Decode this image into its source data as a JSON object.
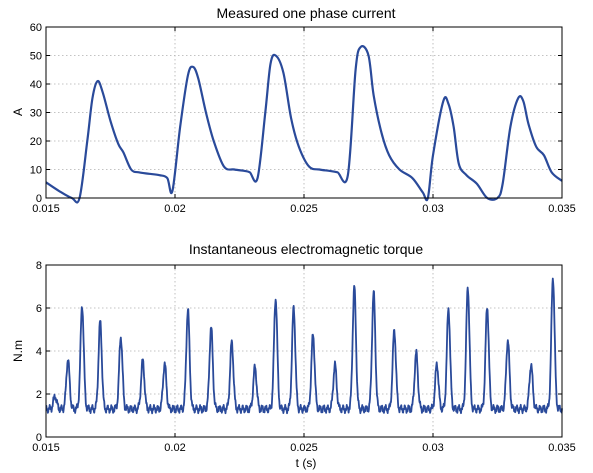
{
  "chart_data": [
    {
      "type": "line",
      "title": "Measured one phase current",
      "xlabel": "",
      "ylabel": "A",
      "xlim": [
        0.015,
        0.035
      ],
      "ylim": [
        0,
        60
      ],
      "xticks": [
        0.015,
        0.02,
        0.025,
        0.03,
        0.035
      ],
      "xtick_labels": [
        "0.015",
        "0.02",
        "0.025",
        "0.03",
        "0.035"
      ],
      "yticks": [
        0,
        10,
        20,
        30,
        40,
        50,
        60
      ],
      "ytick_labels": [
        "0",
        "10",
        "20",
        "30",
        "40",
        "50",
        "60"
      ],
      "grid": true,
      "line_color": "#2a4a9a",
      "series": [
        {
          "x": [
            0.015,
            0.0155,
            0.016,
            0.0163,
            0.0166,
            0.0168,
            0.017,
            0.0172,
            0.0175,
            0.0178,
            0.018,
            0.0183,
            0.0186,
            0.019,
            0.0194,
            0.0197,
            0.0199,
            0.0202,
            0.0205,
            0.0207,
            0.0209,
            0.0212,
            0.0215,
            0.0219,
            0.0223,
            0.0227,
            0.0229,
            0.0232,
            0.0235,
            0.0237,
            0.0239,
            0.0242,
            0.0245,
            0.0248,
            0.0252,
            0.0256,
            0.026,
            0.0263,
            0.0267,
            0.027,
            0.0272,
            0.0275,
            0.0277,
            0.028,
            0.0283,
            0.0287,
            0.0292,
            0.0296,
            0.0298,
            0.03,
            0.0304,
            0.0306,
            0.0308,
            0.031,
            0.0313,
            0.0317,
            0.0321,
            0.0325,
            0.0327,
            0.033,
            0.0333,
            0.0335,
            0.0337,
            0.034,
            0.0343,
            0.0346,
            0.035
          ],
          "y": [
            5.5,
            2.5,
            0,
            0,
            20,
            35,
            41,
            37,
            27,
            19,
            16,
            10,
            9,
            8.5,
            8,
            7,
            2.5,
            25,
            43,
            46,
            42,
            30,
            20,
            11,
            10,
            9.5,
            9,
            7,
            30,
            47,
            50,
            44,
            28,
            18,
            11,
            10,
            9.5,
            9,
            8,
            45,
            53,
            50,
            36,
            23,
            15,
            10,
            7,
            2,
            0,
            15,
            34,
            33,
            25,
            12,
            8,
            5,
            0,
            0,
            5,
            25,
            35,
            34,
            26,
            18,
            15,
            9,
            6
          ]
        }
      ]
    },
    {
      "type": "line",
      "title": "Instantaneous electromagnetic torque",
      "xlabel": "t (s)",
      "ylabel": "N.m",
      "xlim": [
        0.015,
        0.035
      ],
      "ylim": [
        0,
        8
      ],
      "xticks": [
        0.015,
        0.02,
        0.025,
        0.03,
        0.035
      ],
      "xtick_labels": [
        "0.015",
        "0.02",
        "0.025",
        "0.03",
        "0.035"
      ],
      "yticks": [
        0,
        2,
        4,
        6,
        8
      ],
      "ytick_labels": [
        "0",
        "2",
        "4",
        "6",
        "8"
      ],
      "grid": true,
      "line_color": "#2a4a9a",
      "baseline": 1.3,
      "series": [
        {
          "peaks": [
            {
              "x": 0.01535,
              "y": 1.9
            },
            {
              "x": 0.01585,
              "y": 3.6
            },
            {
              "x": 0.0164,
              "y": 6.1
            },
            {
              "x": 0.0171,
              "y": 5.35
            },
            {
              "x": 0.0179,
              "y": 4.65
            },
            {
              "x": 0.01875,
              "y": 3.55
            },
            {
              "x": 0.0196,
              "y": 3.4
            },
            {
              "x": 0.0205,
              "y": 5.9
            },
            {
              "x": 0.0214,
              "y": 5.1
            },
            {
              "x": 0.0222,
              "y": 4.4
            },
            {
              "x": 0.0231,
              "y": 3.25
            },
            {
              "x": 0.0239,
              "y": 6.45
            },
            {
              "x": 0.0246,
              "y": 6.0
            },
            {
              "x": 0.02535,
              "y": 4.75
            },
            {
              "x": 0.0262,
              "y": 3.35
            },
            {
              "x": 0.02695,
              "y": 6.98
            },
            {
              "x": 0.0277,
              "y": 6.7
            },
            {
              "x": 0.0285,
              "y": 4.95
            },
            {
              "x": 0.02935,
              "y": 3.9
            },
            {
              "x": 0.03015,
              "y": 3.4
            },
            {
              "x": 0.0306,
              "y": 5.95
            },
            {
              "x": 0.03135,
              "y": 6.95
            },
            {
              "x": 0.0321,
              "y": 6.05
            },
            {
              "x": 0.0329,
              "y": 4.5
            },
            {
              "x": 0.0338,
              "y": 3.35
            },
            {
              "x": 0.03465,
              "y": 7.4
            }
          ]
        }
      ]
    }
  ]
}
